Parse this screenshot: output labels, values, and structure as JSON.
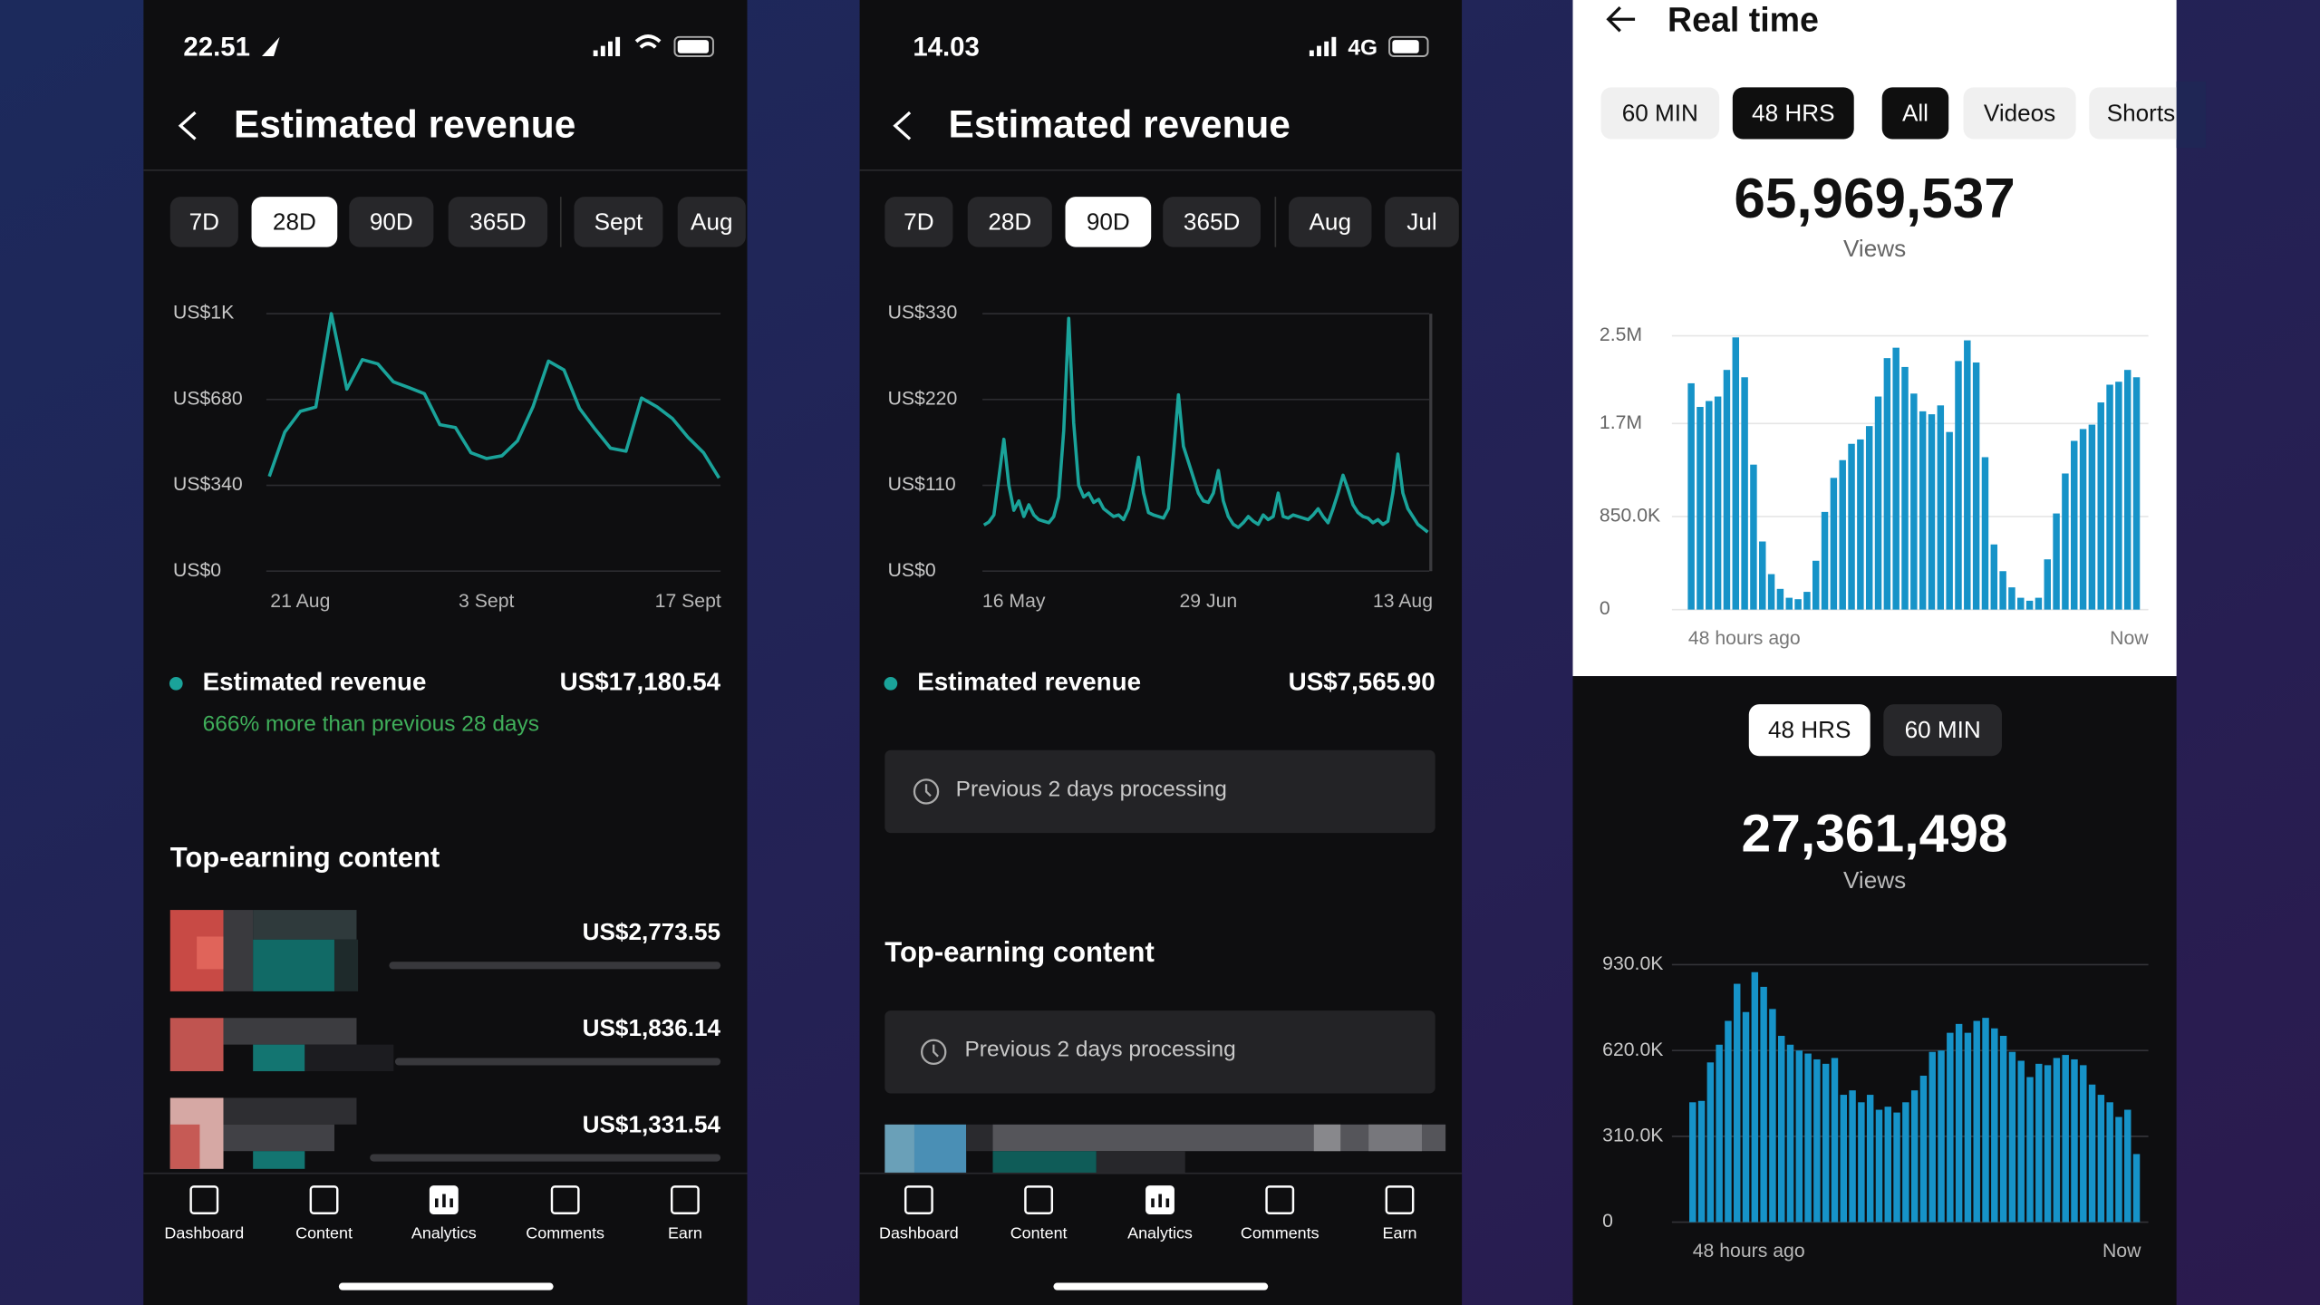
{
  "phone1": {
    "status_time": "22.51",
    "title": "Estimated revenue",
    "tabs": [
      "7D",
      "28D",
      "90D",
      "365D",
      "Sept",
      "Aug"
    ],
    "active_tab": 1,
    "chart": {
      "type": "line",
      "color": "#1aa39a",
      "categories": [
        null,
        null,
        "21 Aug",
        null,
        null,
        null,
        null,
        null,
        null,
        null,
        null,
        null,
        null,
        null,
        "3 Sept",
        null,
        null,
        null,
        null,
        null,
        null,
        null,
        null,
        null,
        null,
        null,
        null,
        "17 Sept",
        null,
        null
      ],
      "values": [
        375,
        551,
        633,
        650,
        1020,
        721,
        838,
        821,
        750,
        727,
        703,
        580,
        569,
        469,
        446,
        457,
        516,
        651,
        832,
        797,
        645,
        563,
        487,
        475,
        686,
        651,
        604,
        530,
        469,
        369
      ],
      "ylim": [
        0,
        1020
      ],
      "yticks": [
        {
          "value": 0,
          "label": "US$0"
        },
        {
          "value": 340,
          "label": "US$340"
        },
        {
          "value": 680,
          "label": "US$680"
        },
        {
          "value": 1020,
          "label": "US$1K"
        }
      ],
      "grid": true
    },
    "summary": {
      "label": "Estimated revenue",
      "value": "US$17,180.54",
      "note": "666% more than previous 28 days"
    },
    "section_title": "Top-earning content",
    "top_content": [
      "US$2,773.55",
      "US$1,836.14",
      "US$1,331.54"
    ],
    "nav": [
      "Dashboard",
      "Content",
      "Analytics",
      "Comments",
      "Earn"
    ],
    "active_nav": 2
  },
  "phone2": {
    "status_time": "14.03",
    "status_network": "4G",
    "title": "Estimated revenue",
    "tabs": [
      "7D",
      "28D",
      "90D",
      "365D",
      "Aug",
      "Jul"
    ],
    "active_tab": 2,
    "chart": {
      "type": "line",
      "color": "#1aa39a",
      "categories": [
        null,
        null,
        null,
        null,
        null,
        null,
        "16 May",
        null,
        null,
        null,
        null,
        null,
        null,
        null,
        null,
        null,
        null,
        null,
        null,
        null,
        null,
        null,
        null,
        null,
        null,
        null,
        null,
        null,
        null,
        null,
        null,
        null,
        null,
        null,
        null,
        null,
        null,
        null,
        null,
        null,
        null,
        null,
        null,
        null,
        null,
        "29 Jun",
        null,
        null,
        null,
        null,
        null,
        null,
        null,
        null,
        null,
        null,
        null,
        null,
        null,
        null,
        null,
        null,
        null,
        null,
        null,
        null,
        null,
        null,
        null,
        null,
        null,
        null,
        null,
        null,
        null,
        null,
        null,
        null,
        null,
        null,
        null,
        null,
        null,
        null,
        "13 Aug",
        null,
        null,
        null,
        null,
        null
      ],
      "values": [
        59,
        63,
        72,
        120,
        169,
        110,
        78,
        90,
        70,
        85,
        72,
        66,
        64,
        62,
        70,
        95,
        180,
        324,
        190,
        110,
        95,
        100,
        88,
        92,
        80,
        75,
        70,
        72,
        66,
        80,
        110,
        146,
        100,
        75,
        72,
        70,
        68,
        80,
        150,
        226,
        160,
        140,
        120,
        100,
        90,
        88,
        100,
        129,
        90,
        70,
        60,
        56,
        62,
        70,
        64,
        60,
        72,
        66,
        70,
        100,
        70,
        68,
        72,
        70,
        68,
        66,
        72,
        80,
        70,
        62,
        80,
        100,
        123,
        105,
        85,
        75,
        70,
        68,
        62,
        66,
        60,
        64,
        100,
        150,
        100,
        80,
        70,
        60,
        55,
        50
      ],
      "ylim": [
        0,
        330
      ],
      "yticks": [
        {
          "value": 0,
          "label": "US$0"
        },
        {
          "value": 110,
          "label": "US$110"
        },
        {
          "value": 220,
          "label": "US$220"
        },
        {
          "value": 330,
          "label": "US$330"
        }
      ],
      "grid": true
    },
    "summary": {
      "label": "Estimated revenue",
      "value": "US$7,565.90"
    },
    "processing": [
      "Previous 2 days processing",
      "Previous 2 days processing"
    ],
    "section_title": "Top-earning content",
    "nav": [
      "Dashboard",
      "Content",
      "Analytics",
      "Comments",
      "Earn"
    ],
    "active_nav": 2
  },
  "phone3": {
    "title": "Real time",
    "range_tabs": [
      "60 MIN",
      "48 HRS"
    ],
    "active_range": 1,
    "type_tabs": [
      "All",
      "Videos",
      "Shorts"
    ],
    "active_type": 0,
    "views_total": "65,969,537",
    "views_label": "Views",
    "chart": {
      "type": "bar",
      "color": "#1693c8",
      "categories": [
        "48 hours ago",
        null,
        null,
        null,
        null,
        null,
        null,
        null,
        null,
        null,
        null,
        null,
        null,
        null,
        null,
        null,
        null,
        null,
        null,
        null,
        null,
        null,
        null,
        null,
        null,
        null,
        null,
        null,
        null,
        null,
        null,
        null,
        null,
        null,
        null,
        null,
        null,
        null,
        null,
        null,
        null,
        null,
        null,
        null,
        null,
        null,
        null,
        null,
        null,
        null,
        "Now"
      ],
      "values": [
        2067000,
        1851000,
        1905000,
        1946000,
        2189000,
        2486000,
        2122000,
        1324000,
        622000,
        324000,
        189000,
        108000,
        95000,
        162000,
        446000,
        892000,
        1203000,
        1365000,
        1514000,
        1554000,
        1676000,
        1946000,
        2297000,
        2392000,
        2216000,
        1973000,
        1811000,
        1784000,
        1865000,
        1622000,
        2270000,
        2459000,
        2257000,
        1392000,
        595000,
        351000,
        203000,
        108000,
        81000,
        108000,
        459000,
        878000,
        1243000,
        1541000,
        1649000,
        1689000,
        1892000,
        2054000,
        2081000,
        2189000,
        2122000
      ],
      "ylim": [
        0,
        2500000
      ],
      "yticks": [
        0,
        {
          "value": 850000,
          "label": "850.0K"
        },
        {
          "value": 1700000,
          "label": "1.7M"
        },
        {
          "value": 2500000,
          "label": "2.5M"
        }
      ],
      "grid": true
    }
  },
  "lower": {
    "tabs": [
      "48 HRS",
      "60 MIN"
    ],
    "active_tab": 0,
    "views_total": "27,361,498",
    "views_label": "Views",
    "chart": {
      "type": "bar",
      "color": "#1693c8",
      "categories": [
        "48 hours ago",
        null,
        null,
        null,
        null,
        null,
        null,
        null,
        null,
        null,
        null,
        null,
        null,
        null,
        null,
        null,
        null,
        null,
        null,
        null,
        null,
        null,
        null,
        null,
        null,
        null,
        null,
        null,
        null,
        null,
        null,
        null,
        null,
        null,
        null,
        null,
        null,
        null,
        null,
        null,
        null,
        null,
        null,
        null,
        null,
        null,
        null,
        null,
        null,
        null,
        "Now"
      ],
      "values": [
        433000,
        438000,
        577000,
        641000,
        727000,
        861000,
        759000,
        903000,
        850000,
        770000,
        673000,
        641000,
        620000,
        609000,
        588000,
        572000,
        593000,
        460000,
        476000,
        433000,
        460000,
        406000,
        417000,
        396000,
        433000,
        476000,
        529000,
        615000,
        620000,
        684000,
        716000,
        684000,
        727000,
        738000,
        700000,
        673000,
        615000,
        583000,
        524000,
        572000,
        567000,
        593000,
        604000,
        588000,
        567000,
        497000,
        460000,
        433000,
        380000,
        406000,
        246000
      ],
      "ylim": [
        0,
        930000
      ],
      "yticks": [
        0,
        {
          "value": 310000,
          "label": "310.0K"
        },
        {
          "value": 620000,
          "label": "620.0K"
        },
        {
          "value": 930000,
          "label": "930.0K"
        }
      ],
      "grid": true
    }
  }
}
